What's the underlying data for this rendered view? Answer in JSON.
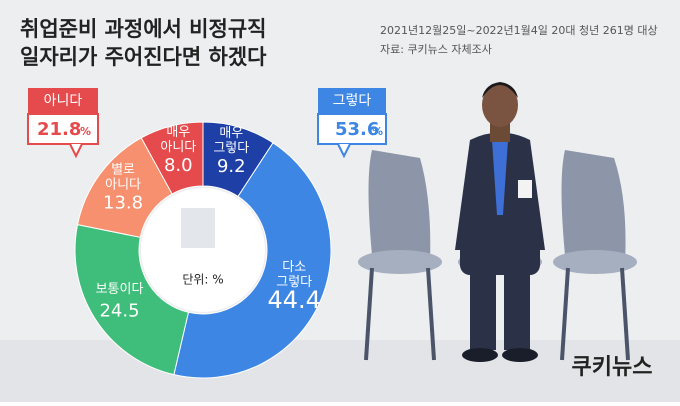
{
  "chart_data": {
    "type": "donut",
    "title": [
      "취업준비 과정에서 비정규직",
      "일자리가 주어진다면 하겠다"
    ],
    "notes": [
      "2021년12월25일~2022년1월4일 20대 청년 261명 대상",
      "자료: 쿠키뉴스 자체조사"
    ],
    "unit_label": "단위: %",
    "categories": [
      "매우 그렇다",
      "다소 그렇다",
      "보통이다",
      "별로 아니다",
      "매우 아니다"
    ],
    "values": [
      9.2,
      44.4,
      24.5,
      13.8,
      8.0
    ],
    "value_labels": [
      "9.2",
      "44.4",
      "24.5",
      "13.8",
      "8.0"
    ],
    "colors": [
      "#1d3fa6",
      "#3d86e3",
      "#3fbd7a",
      "#f6906f",
      "#e54a4c"
    ],
    "callouts": [
      {
        "label": "그렇다",
        "value": 53.6,
        "unit": "%",
        "color": "#3d86e3"
      },
      {
        "label": "아니다",
        "value": 21.8,
        "unit": "%",
        "color": "#e54a4c"
      }
    ],
    "logo": "쿠키뉴스"
  }
}
